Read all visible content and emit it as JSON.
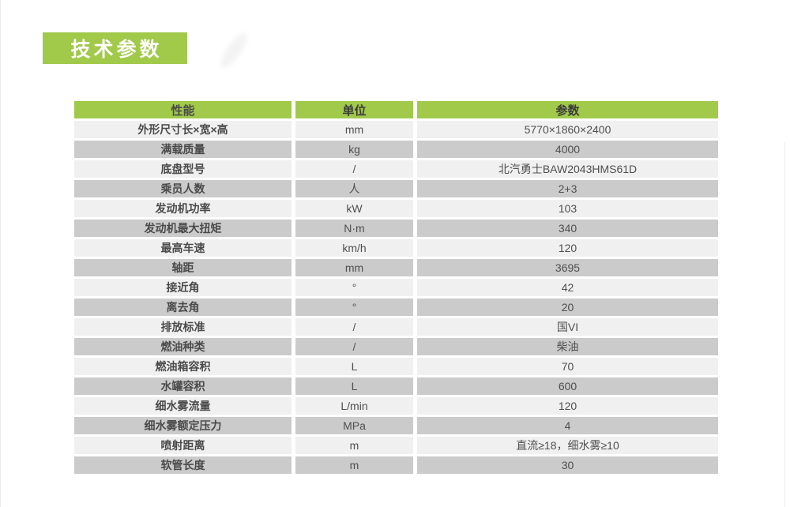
{
  "theme": {
    "accent_green": "#a1c94a",
    "row_light": "#f0f0f0",
    "row_dark": "#cbcbcb"
  },
  "page": {
    "title_badge": "技术参数"
  },
  "table": {
    "columns": [
      "性能",
      "单位",
      "参数"
    ],
    "rows": [
      {
        "name": "外形尺寸长×宽×高",
        "unit": "mm",
        "value": "5770×1860×2400"
      },
      {
        "name": "满载质量",
        "unit": "kg",
        "value": "4000"
      },
      {
        "name": "底盘型号",
        "unit": "/",
        "value": "北汽勇士BAW2043HMS61D"
      },
      {
        "name": "乘员人数",
        "unit": "人",
        "value": "2+3"
      },
      {
        "name": "发动机功率",
        "unit": "kW",
        "value": "103"
      },
      {
        "name": "发动机最大扭矩",
        "unit": "N·m",
        "value": "340"
      },
      {
        "name": "最高车速",
        "unit": "km/h",
        "value": "120"
      },
      {
        "name": "轴距",
        "unit": "mm",
        "value": "3695"
      },
      {
        "name": "接近角",
        "unit": "°",
        "value": "42"
      },
      {
        "name": "离去角",
        "unit": "°",
        "value": "20"
      },
      {
        "name": "排放标准",
        "unit": "/",
        "value": "国VI"
      },
      {
        "name": "燃油种类",
        "unit": "/",
        "value": "柴油"
      },
      {
        "name": "燃油箱容积",
        "unit": "L",
        "value": "70"
      },
      {
        "name": "水罐容积",
        "unit": "L",
        "value": "600"
      },
      {
        "name": "细水雾流量",
        "unit": "L/min",
        "value": "120"
      },
      {
        "name": "细水雾额定压力",
        "unit": "MPa",
        "value": "4"
      },
      {
        "name": "喷射距离",
        "unit": "m",
        "value": "直流≥18，细水雾≥10"
      },
      {
        "name": "软管长度",
        "unit": "m",
        "value": "30"
      }
    ]
  }
}
